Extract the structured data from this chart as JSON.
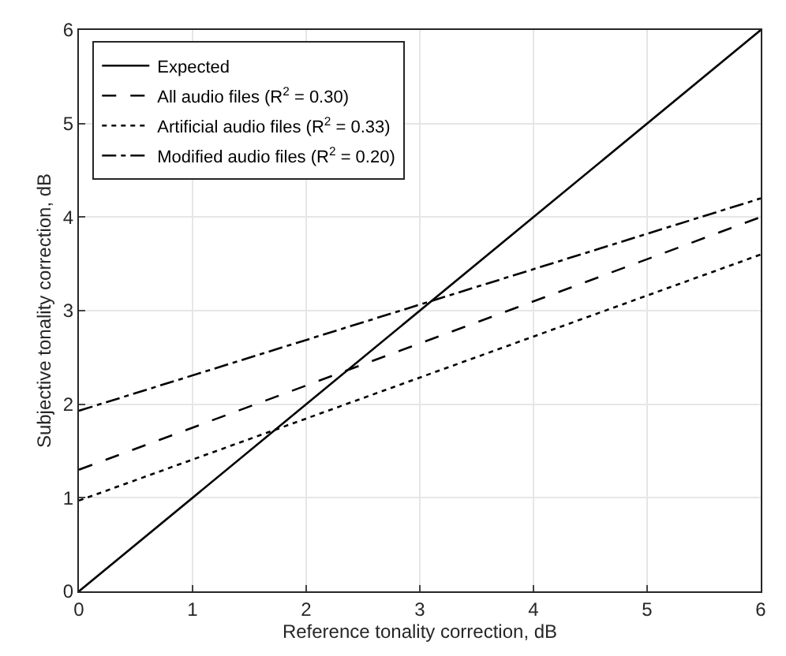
{
  "chart_data": {
    "type": "line",
    "xlabel": "Reference tonality correction, dB",
    "ylabel": "Subjective tonality correction, dB",
    "x": [
      0,
      6
    ],
    "xlim": [
      0,
      6
    ],
    "ylim": [
      0,
      6
    ],
    "xticks": [
      0,
      1,
      2,
      3,
      4,
      5,
      6
    ],
    "yticks": [
      0,
      1,
      2,
      3,
      4,
      5,
      6
    ],
    "grid": true,
    "legend": "top left",
    "marker": "none",
    "series": [
      {
        "name": "Expected",
        "color": "#000000",
        "values": [
          0,
          6
        ],
        "line_style": "solid"
      },
      {
        "name": "All audio files (R$^{2}$ = 0.30)",
        "color": "#000000",
        "values": [
          1.3,
          4.0
        ],
        "line_style": "dashed"
      },
      {
        "name": "Artificial audio files (R$^{2}$ = 0.33)",
        "color": "#000000",
        "values": [
          0.97,
          3.6
        ],
        "line_style": "dotted"
      },
      {
        "name": "Modified audio files (R$^{2}$ = 0.20)",
        "color": "#000000",
        "values": [
          1.93,
          4.2
        ],
        "line_style": "dashdot"
      }
    ]
  }
}
